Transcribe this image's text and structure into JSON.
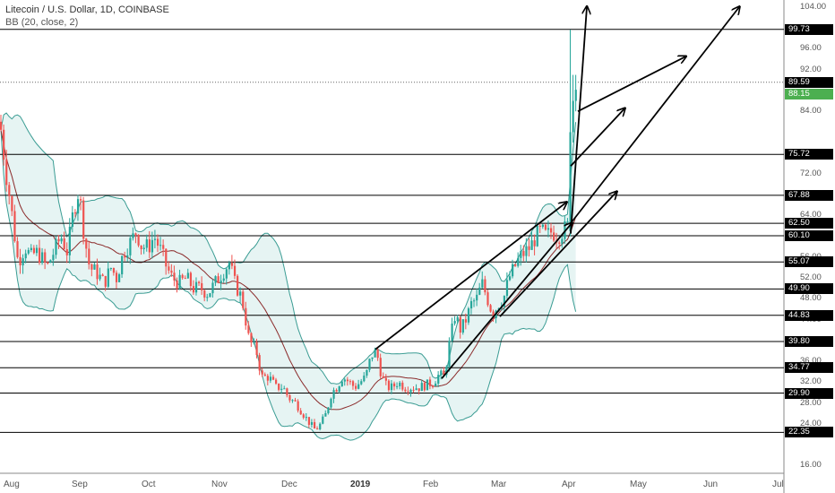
{
  "header": {
    "title": "Litecoin / U.S. Dollar, 1D, COINBASE",
    "indicator": "BB (20, close, 2)"
  },
  "chart_data": {
    "type": "candlestick",
    "ylim": [
      14.5,
      104
    ],
    "y_ticks": [
      "104.00",
      "96.00",
      "92.00",
      "84.00",
      "72.00",
      "64.00",
      "56.00",
      "52.00",
      "48.00",
      "44.00",
      "36.00",
      "32.00",
      "28.00",
      "24.00",
      "16.00"
    ],
    "x_labels": [
      {
        "label": "Aug",
        "bold": false
      },
      {
        "label": "Sep",
        "bold": false
      },
      {
        "label": "Oct",
        "bold": false
      },
      {
        "label": "Nov",
        "bold": false
      },
      {
        "label": "Dec",
        "bold": false
      },
      {
        "label": "2019",
        "bold": true
      },
      {
        "label": "Feb",
        "bold": false
      },
      {
        "label": "Mar",
        "bold": false
      },
      {
        "label": "Apr",
        "bold": false
      },
      {
        "label": "May",
        "bold": false
      },
      {
        "label": "Jun",
        "bold": false
      },
      {
        "label": "Jul",
        "bold": false
      }
    ],
    "horizontal_levels": [
      99.73,
      75.72,
      67.88,
      62.5,
      60.1,
      55.07,
      49.9,
      44.83,
      39.8,
      34.77,
      29.9,
      22.35
    ],
    "dotted_level": 89.59,
    "last_price": 88.15,
    "colors": {
      "up": "#26a69a",
      "down": "#ef5350",
      "band_fill": "#e6f4f3",
      "band_line": "#3a9c93",
      "basis": "#8b2b2b",
      "level_line": "#000000"
    },
    "price_path": [
      [
        0,
        82
      ],
      [
        6,
        73
      ],
      [
        12,
        66
      ],
      [
        20,
        55
      ],
      [
        28,
        58
      ],
      [
        34,
        56
      ],
      [
        40,
        57
      ],
      [
        46,
        56
      ],
      [
        52,
        54
      ],
      [
        60,
        57
      ],
      [
        68,
        60
      ],
      [
        75,
        57
      ],
      [
        82,
        65
      ],
      [
        88,
        69
      ],
      [
        94,
        60
      ],
      [
        100,
        54
      ],
      [
        108,
        53
      ],
      [
        116,
        51
      ],
      [
        124,
        54
      ],
      [
        130,
        52
      ],
      [
        138,
        57
      ],
      [
        146,
        59
      ],
      [
        152,
        61
      ],
      [
        158,
        58
      ],
      [
        166,
        58
      ],
      [
        172,
        60
      ],
      [
        180,
        57
      ],
      [
        186,
        54
      ],
      [
        192,
        52
      ],
      [
        200,
        51
      ],
      [
        208,
        52
      ],
      [
        216,
        50
      ],
      [
        224,
        50
      ],
      [
        232,
        49
      ],
      [
        240,
        51
      ],
      [
        248,
        53
      ],
      [
        256,
        55
      ],
      [
        262,
        51
      ],
      [
        270,
        48
      ],
      [
        278,
        40
      ],
      [
        286,
        38
      ],
      [
        292,
        33
      ],
      [
        300,
        33
      ],
      [
        308,
        31
      ],
      [
        316,
        31
      ],
      [
        322,
        29
      ],
      [
        330,
        28
      ],
      [
        338,
        26
      ],
      [
        346,
        24
      ],
      [
        352,
        22.8
      ],
      [
        358,
        24
      ],
      [
        364,
        26
      ],
      [
        370,
        30
      ],
      [
        376,
        31
      ],
      [
        382,
        33
      ],
      [
        390,
        32
      ],
      [
        396,
        31
      ],
      [
        402,
        32
      ],
      [
        408,
        33
      ],
      [
        414,
        37
      ],
      [
        420,
        38
      ],
      [
        426,
        33
      ],
      [
        432,
        31
      ],
      [
        438,
        31
      ],
      [
        444,
        32
      ],
      [
        452,
        31
      ],
      [
        460,
        31
      ],
      [
        468,
        31
      ],
      [
        476,
        31.5
      ],
      [
        484,
        32
      ],
      [
        490,
        33.5
      ],
      [
        496,
        33
      ],
      [
        502,
        40
      ],
      [
        508,
        45
      ],
      [
        514,
        42
      ],
      [
        520,
        44
      ],
      [
        526,
        47
      ],
      [
        532,
        48
      ],
      [
        538,
        51
      ],
      [
        544,
        48
      ],
      [
        550,
        45
      ],
      [
        556,
        47
      ],
      [
        562,
        48
      ],
      [
        568,
        52
      ],
      [
        574,
        54
      ],
      [
        580,
        56
      ],
      [
        586,
        57
      ],
      [
        592,
        58
      ],
      [
        598,
        60
      ],
      [
        604,
        61
      ],
      [
        610,
        60
      ],
      [
        616,
        61
      ],
      [
        622,
        60
      ],
      [
        628,
        61
      ],
      [
        634,
        62
      ],
      [
        636,
        73
      ],
      [
        638,
        80
      ],
      [
        640,
        85
      ],
      [
        642,
        86
      ],
      [
        644,
        88
      ]
    ],
    "arrows": [
      {
        "from": [
          419,
          38.3
        ],
        "to": [
          632,
          66.5
        ]
      },
      {
        "from": [
          493,
          32.7
        ],
        "to": [
          638,
          62.5
        ]
      },
      {
        "from": [
          558,
          44.6
        ],
        "to": [
          688,
          68.5
        ]
      },
      {
        "from": [
          637,
          73.5
        ],
        "to": [
          697,
          84.5
        ]
      },
      {
        "from": [
          645,
          84.0
        ],
        "to": [
          765,
          94.5
        ]
      },
      {
        "from": [
          637,
          60.5
        ],
        "to": [
          655,
          104
        ]
      },
      {
        "from": [
          637,
          62.5
        ],
        "to": [
          825,
          104
        ]
      }
    ]
  }
}
